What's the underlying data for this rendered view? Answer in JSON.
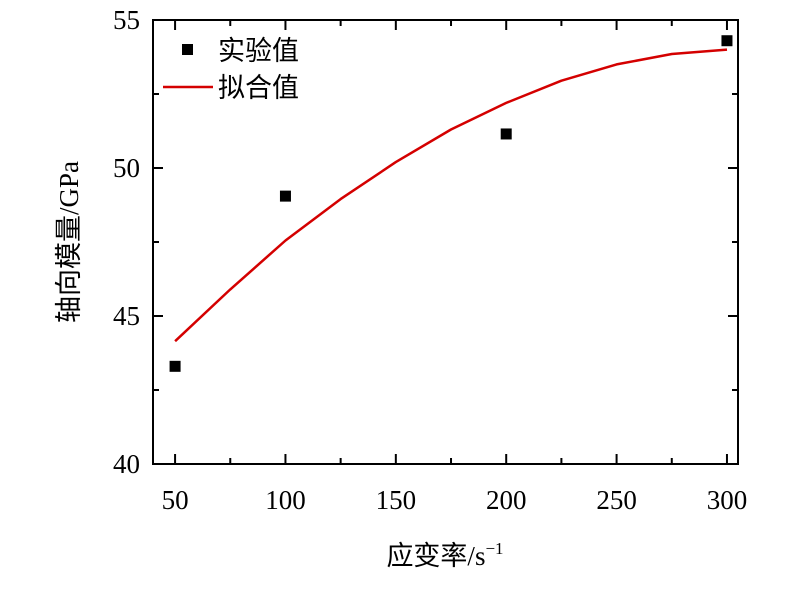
{
  "chart_data": {
    "type": "scatter",
    "xlabel": "应变率/s",
    "xlabel_superscript": "−1",
    "ylabel": "轴向模量/GPa",
    "xlim": [
      40,
      305
    ],
    "ylim": [
      40,
      55
    ],
    "x_ticks": [
      50,
      100,
      150,
      200,
      250,
      300
    ],
    "y_ticks": [
      40,
      45,
      50,
      55
    ],
    "x_tick_labels": [
      "50",
      "100",
      "150",
      "200",
      "250",
      "300"
    ],
    "y_tick_labels": [
      "40",
      "45",
      "50",
      "55"
    ],
    "grid": false,
    "legend_position": "top-left",
    "series": [
      {
        "name": "实验值",
        "kind": "scatter",
        "color": "#000000",
        "marker": "square",
        "x": [
          50,
          100,
          200,
          300
        ],
        "y": [
          43.3,
          49.05,
          51.15,
          54.3
        ]
      },
      {
        "name": "拟合值",
        "kind": "line",
        "color": "#d40000",
        "x": [
          50,
          75,
          100,
          125,
          150,
          175,
          200,
          225,
          250,
          275,
          300
        ],
        "y": [
          44.15,
          45.9,
          47.55,
          48.95,
          50.2,
          51.3,
          52.2,
          52.95,
          53.5,
          53.85,
          54.0
        ]
      }
    ]
  }
}
